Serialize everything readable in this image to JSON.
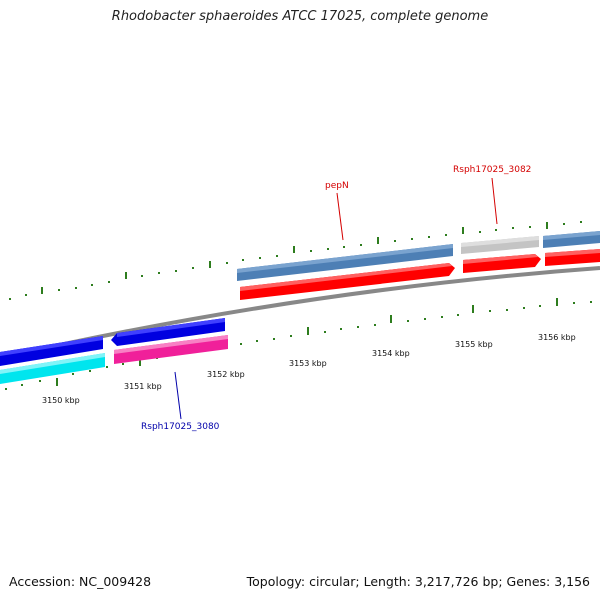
{
  "title": "Rhodobacter sphaeroides ATCC 17025, complete genome",
  "footer": {
    "accession": "Accession: NC_009428",
    "summary": "Topology: circular; Length: 3,217,726 bp; Genes: 3,156"
  },
  "scale_labels": [
    "3150 kbp",
    "3151 kbp",
    "3152 kbp",
    "3153 kbp",
    "3154 kbp",
    "3155 kbp",
    "3156 kbp"
  ],
  "gene_labels": [
    {
      "name": "pepN",
      "color": "#d40000"
    },
    {
      "name": "Rsph17025_3082",
      "color": "#d40000"
    },
    {
      "name": "Rsph17025_3080",
      "color": "#0000aa"
    }
  ],
  "colors": {
    "backbone": "#888888",
    "tick": "#2e7d1e",
    "forward_gene": "#ff0000",
    "forward_cds": "#4d7fb5",
    "reverse_gene": "#0000e0",
    "reverse_cds_pink": "#f0209a",
    "reverse_cds_cyan": "#00e5ee",
    "grey_gene": "#c4c4c4"
  }
}
